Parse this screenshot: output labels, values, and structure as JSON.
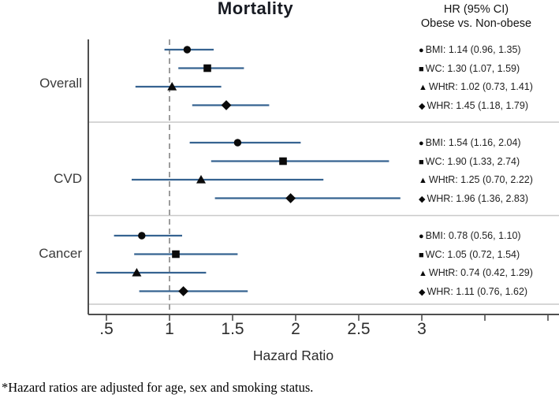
{
  "title": "Mortality",
  "legend_header": {
    "line1": "HR (95% CI)",
    "line2": "Obese vs. Non-obese"
  },
  "footnote": "*Hazard ratios are adjusted for age, sex and smoking status.",
  "colors": {
    "ci_line": "#366391",
    "marker": "#0a0a0a",
    "reference_line": "#9c9c9c",
    "axis": "#4f4f4f",
    "separator": "#c9c9c9"
  },
  "chart_data": {
    "type": "forest",
    "title": "Mortality",
    "xlabel": "Hazard Ratio",
    "x_axis": {
      "ticks": [
        0.5,
        1,
        1.5,
        2,
        2.5,
        3
      ],
      "tick_labels": [
        ".5",
        "1",
        "1.5",
        "2",
        "2.5",
        "3"
      ],
      "unlabeled_ticks": [
        3.5,
        4
      ],
      "reference_line": 1.0,
      "range_shown": [
        0.36,
        4.09
      ]
    },
    "legend_position": "right",
    "groups": [
      {
        "label": "Overall",
        "rows": [
          {
            "measure": "BMI",
            "marker": "circle",
            "glyph": "●",
            "hr": 1.14,
            "ci_low": 0.96,
            "ci_high": 1.35,
            "label": "BMI: 1.14 (0.96, 1.35)"
          },
          {
            "measure": "WC",
            "marker": "square",
            "glyph": "■",
            "hr": 1.3,
            "ci_low": 1.07,
            "ci_high": 1.59,
            "label": "WC: 1.30 (1.07, 1.59)"
          },
          {
            "measure": "WHtR",
            "marker": "triangle",
            "glyph": "▲",
            "hr": 1.02,
            "ci_low": 0.73,
            "ci_high": 1.41,
            "label": "WHtR: 1.02 (0.73, 1.41)"
          },
          {
            "measure": "WHR",
            "marker": "diamond",
            "glyph": "◆",
            "hr": 1.45,
            "ci_low": 1.18,
            "ci_high": 1.79,
            "label": "WHR: 1.45 (1.18, 1.79)"
          }
        ]
      },
      {
        "label": "CVD",
        "rows": [
          {
            "measure": "BMI",
            "marker": "circle",
            "glyph": "●",
            "hr": 1.54,
            "ci_low": 1.16,
            "ci_high": 2.04,
            "label": "BMI: 1.54 (1.16, 2.04)"
          },
          {
            "measure": "WC",
            "marker": "square",
            "glyph": "■",
            "hr": 1.9,
            "ci_low": 1.33,
            "ci_high": 2.74,
            "label": "WC: 1.90 (1.33, 2.74)"
          },
          {
            "measure": "WHtR",
            "marker": "triangle",
            "glyph": "▲",
            "hr": 1.25,
            "ci_low": 0.7,
            "ci_high": 2.22,
            "label": "WHtR: 1.25 (0.70, 2.22)"
          },
          {
            "measure": "WHR",
            "marker": "diamond",
            "glyph": "◆",
            "hr": 1.96,
            "ci_low": 1.36,
            "ci_high": 2.83,
            "label": "WHR: 1.96 (1.36, 2.83)"
          }
        ]
      },
      {
        "label": "Cancer",
        "rows": [
          {
            "measure": "BMI",
            "marker": "circle",
            "glyph": "●",
            "hr": 0.78,
            "ci_low": 0.56,
            "ci_high": 1.1,
            "label": "BMI: 0.78 (0.56, 1.10)"
          },
          {
            "measure": "WC",
            "marker": "square",
            "glyph": "■",
            "hr": 1.05,
            "ci_low": 0.72,
            "ci_high": 1.54,
            "label": "WC: 1.05 (0.72, 1.54)"
          },
          {
            "measure": "WHtR",
            "marker": "triangle",
            "glyph": "▲",
            "hr": 0.74,
            "ci_low": 0.42,
            "ci_high": 1.29,
            "label": "WHtR: 0.74 (0.42, 1.29)"
          },
          {
            "measure": "WHR",
            "marker": "diamond",
            "glyph": "◆",
            "hr": 1.11,
            "ci_low": 0.76,
            "ci_high": 1.62,
            "label": "WHR: 1.11 (0.76, 1.62)"
          }
        ]
      }
    ]
  }
}
